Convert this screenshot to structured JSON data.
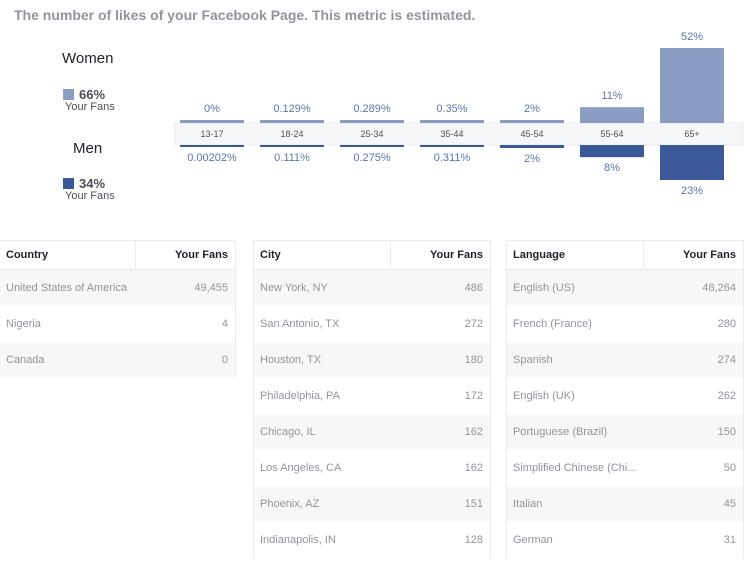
{
  "header": {
    "title": "The number of likes of your Facebook Page. This metric is estimated."
  },
  "colors": {
    "women": "#8b9dc3",
    "men": "#3b5998",
    "label": "#5b76a8",
    "band": "#f6f7f9"
  },
  "gender": {
    "women": {
      "label": "Women",
      "percent": "66%",
      "sub": "Your Fans"
    },
    "men": {
      "label": "Men",
      "percent": "34%",
      "sub": "Your Fans"
    }
  },
  "chart_data": {
    "type": "bar",
    "categories": [
      "13-17",
      "18-24",
      "25-34",
      "35-44",
      "45-54",
      "55-64",
      "65+"
    ],
    "series": [
      {
        "name": "Women",
        "values": [
          0,
          0.129,
          0.289,
          0.35,
          2,
          11,
          52
        ],
        "labels": [
          "0%",
          "0.129%",
          "0.289%",
          "0.35%",
          "2%",
          "11%",
          "52%"
        ]
      },
      {
        "name": "Men",
        "values": [
          0.00202,
          0.111,
          0.275,
          0.311,
          2,
          8,
          23
        ],
        "labels": [
          "0.00202%",
          "0.111%",
          "0.275%",
          "0.311%",
          "2%",
          "8%",
          "23%"
        ]
      }
    ],
    "title": "",
    "xlabel": "",
    "ylabel": "",
    "ylim": [
      0,
      52
    ]
  },
  "tables": {
    "country": {
      "headers": [
        "Country",
        "Your Fans"
      ],
      "rows": [
        [
          "United States of America",
          "49,455"
        ],
        [
          "Nigeria",
          "4"
        ],
        [
          "Canada",
          "0"
        ]
      ]
    },
    "city": {
      "headers": [
        "City",
        "Your Fans"
      ],
      "rows": [
        [
          "New York, NY",
          "486"
        ],
        [
          "San Antonio, TX",
          "272"
        ],
        [
          "Houston, TX",
          "180"
        ],
        [
          "Philadelphia, PA",
          "172"
        ],
        [
          "Chicago, IL",
          "162"
        ],
        [
          "Los Angeles, CA",
          "162"
        ],
        [
          "Phoenix, AZ",
          "151"
        ],
        [
          "Indianapolis, IN",
          "128"
        ]
      ]
    },
    "language": {
      "headers": [
        "Language",
        "Your Fans"
      ],
      "rows": [
        [
          "English (US)",
          "48,264"
        ],
        [
          "French (France)",
          "280"
        ],
        [
          "Spanish",
          "274"
        ],
        [
          "English (UK)",
          "262"
        ],
        [
          "Portuguese (Brazil)",
          "150"
        ],
        [
          "Simplified Chinese (Chi...",
          "50"
        ],
        [
          "Italian",
          "45"
        ],
        [
          "German",
          "31"
        ]
      ]
    }
  }
}
